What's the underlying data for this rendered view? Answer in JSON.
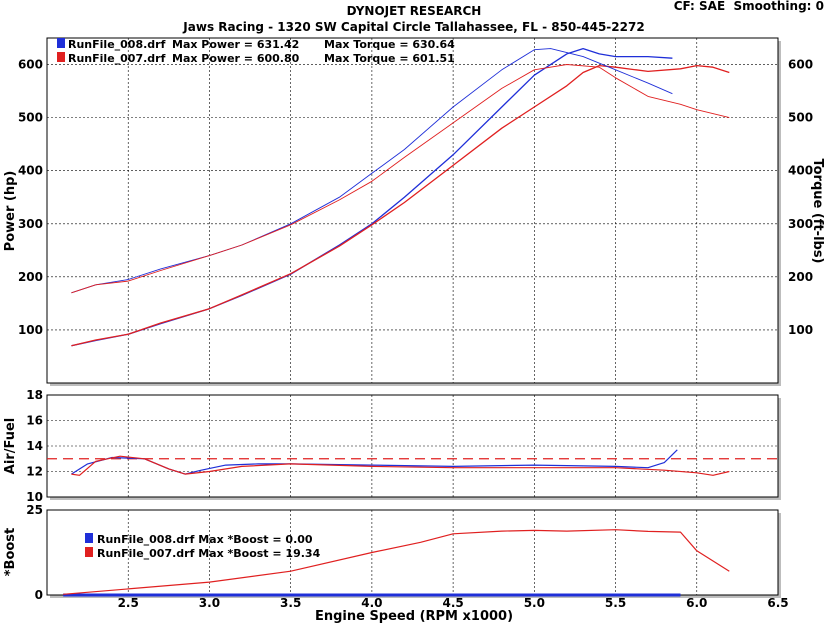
{
  "header": {
    "title": "DYNOJET RESEARCH",
    "subtitle": "Jaws Racing - 1320 SW Capital Circle Tallahassee, FL - 850-445-2272",
    "settings": "CF: SAE  Smoothing: 0"
  },
  "legend_top": [
    {
      "file": "RunFile_008.drf",
      "power_label": "Max Power = 631.42",
      "torque_label": "Max Torque = 630.64",
      "color": "#1f2fd8"
    },
    {
      "file": "RunFile_007.drf",
      "power_label": "Max Power = 600.80",
      "torque_label": "Max Torque = 601.51",
      "color": "#e02020"
    }
  ],
  "legend_boost": [
    {
      "label": "RunFile_008.drf Max *Boost = 0.00",
      "color": "#1f2fd8"
    },
    {
      "label": "RunFile_007.drf Max *Boost = 19.34",
      "color": "#e02020"
    }
  ],
  "chart_data": [
    {
      "type": "line",
      "panel": "power-torque",
      "ylabel": "Power (hp)",
      "y2label": "Torque (ft-lbs)",
      "ylim": [
        0,
        650
      ],
      "yticks": [
        100,
        200,
        300,
        400,
        500,
        600
      ],
      "grid": true,
      "series": [
        {
          "name": "RunFile_008.drf",
          "measure": "power",
          "color": "#1f2fd8",
          "x": [
            2.15,
            2.3,
            2.5,
            2.7,
            3.0,
            3.2,
            3.5,
            3.8,
            4.0,
            4.2,
            4.5,
            4.8,
            5.0,
            5.2,
            5.3,
            5.4,
            5.5,
            5.7,
            5.85
          ],
          "y": [
            70,
            80,
            92,
            112,
            140,
            165,
            205,
            260,
            300,
            350,
            430,
            520,
            580,
            620,
            630,
            620,
            615,
            615,
            612
          ]
        },
        {
          "name": "RunFile_007.drf",
          "measure": "power",
          "color": "#e02020",
          "x": [
            2.15,
            2.3,
            2.5,
            2.7,
            3.0,
            3.2,
            3.5,
            3.8,
            4.0,
            4.2,
            4.5,
            4.8,
            5.0,
            5.2,
            5.3,
            5.4,
            5.5,
            5.7,
            5.9,
            6.0,
            6.1,
            6.2
          ],
          "y": [
            70,
            81,
            92,
            113,
            140,
            166,
            206,
            258,
            298,
            340,
            410,
            480,
            520,
            560,
            585,
            598,
            595,
            587,
            592,
            598,
            595,
            585
          ]
        },
        {
          "name": "RunFile_008.drf",
          "measure": "torque",
          "color": "#1f2fd8",
          "x": [
            2.15,
            2.3,
            2.5,
            2.7,
            3.0,
            3.2,
            3.5,
            3.8,
            4.0,
            4.2,
            4.5,
            4.8,
            5.0,
            5.1,
            5.3,
            5.5,
            5.7,
            5.85
          ],
          "y": [
            170,
            185,
            195,
            215,
            240,
            260,
            300,
            350,
            395,
            440,
            520,
            590,
            628,
            630,
            615,
            590,
            565,
            545
          ]
        },
        {
          "name": "RunFile_007.drf",
          "measure": "torque",
          "color": "#e02020",
          "x": [
            2.15,
            2.3,
            2.5,
            2.7,
            3.0,
            3.2,
            3.5,
            3.8,
            4.0,
            4.2,
            4.5,
            4.8,
            5.0,
            5.2,
            5.4,
            5.5,
            5.7,
            5.9,
            6.0,
            6.2
          ],
          "y": [
            170,
            185,
            192,
            212,
            240,
            260,
            298,
            345,
            380,
            425,
            490,
            555,
            590,
            600,
            595,
            575,
            540,
            525,
            515,
            500
          ]
        }
      ]
    },
    {
      "type": "line",
      "panel": "air-fuel",
      "ylabel": "Air/Fuel",
      "ylim": [
        10,
        18
      ],
      "yticks": [
        10,
        12,
        14,
        16,
        18
      ],
      "grid": true,
      "reference_line": 13.0,
      "series": [
        {
          "name": "RunFile_008.drf",
          "color": "#1f2fd8",
          "x": [
            2.15,
            2.25,
            2.4,
            2.6,
            2.75,
            2.85,
            2.95,
            3.1,
            3.3,
            3.5,
            4.0,
            4.5,
            5.0,
            5.5,
            5.7,
            5.8,
            5.88
          ],
          "y": [
            11.8,
            12.6,
            13.1,
            13.0,
            12.2,
            11.8,
            12.1,
            12.5,
            12.6,
            12.6,
            12.5,
            12.4,
            12.5,
            12.4,
            12.3,
            12.7,
            13.7
          ]
        },
        {
          "name": "RunFile_007.drf",
          "color": "#e02020",
          "x": [
            2.15,
            2.2,
            2.3,
            2.45,
            2.6,
            2.75,
            2.85,
            3.0,
            3.2,
            3.5,
            4.0,
            4.5,
            5.0,
            5.5,
            5.8,
            6.0,
            6.1,
            6.2
          ],
          "y": [
            11.8,
            11.7,
            12.8,
            13.2,
            13.0,
            12.2,
            11.8,
            12.0,
            12.4,
            12.6,
            12.4,
            12.3,
            12.3,
            12.3,
            12.1,
            11.9,
            11.7,
            12.0
          ]
        }
      ]
    },
    {
      "type": "line",
      "panel": "boost",
      "ylabel": "*Boost",
      "xlabel": "Engine Speed (RPM x1000)",
      "xlim": [
        2.0,
        6.5
      ],
      "xticks": [
        "2.5",
        "3.0",
        "3.5",
        "4.0",
        "4.5",
        "5.0",
        "5.5",
        "6.0",
        "6.5"
      ],
      "ylim": [
        0,
        25
      ],
      "yticks": [
        0,
        25
      ],
      "grid": true,
      "series": [
        {
          "name": "RunFile_008.drf",
          "color": "#1f2fd8",
          "x": [
            2.1,
            5.9
          ],
          "y": [
            0.0,
            0.0
          ]
        },
        {
          "name": "RunFile_007.drf",
          "color": "#e02020",
          "x": [
            2.1,
            2.5,
            3.0,
            3.5,
            4.0,
            4.3,
            4.5,
            4.8,
            5.0,
            5.2,
            5.5,
            5.7,
            5.9,
            6.0,
            6.2
          ],
          "y": [
            0.2,
            1.8,
            3.8,
            7,
            12.5,
            15.5,
            18,
            18.8,
            19.0,
            18.8,
            19.2,
            18.7,
            18.5,
            13,
            7
          ]
        }
      ]
    }
  ]
}
